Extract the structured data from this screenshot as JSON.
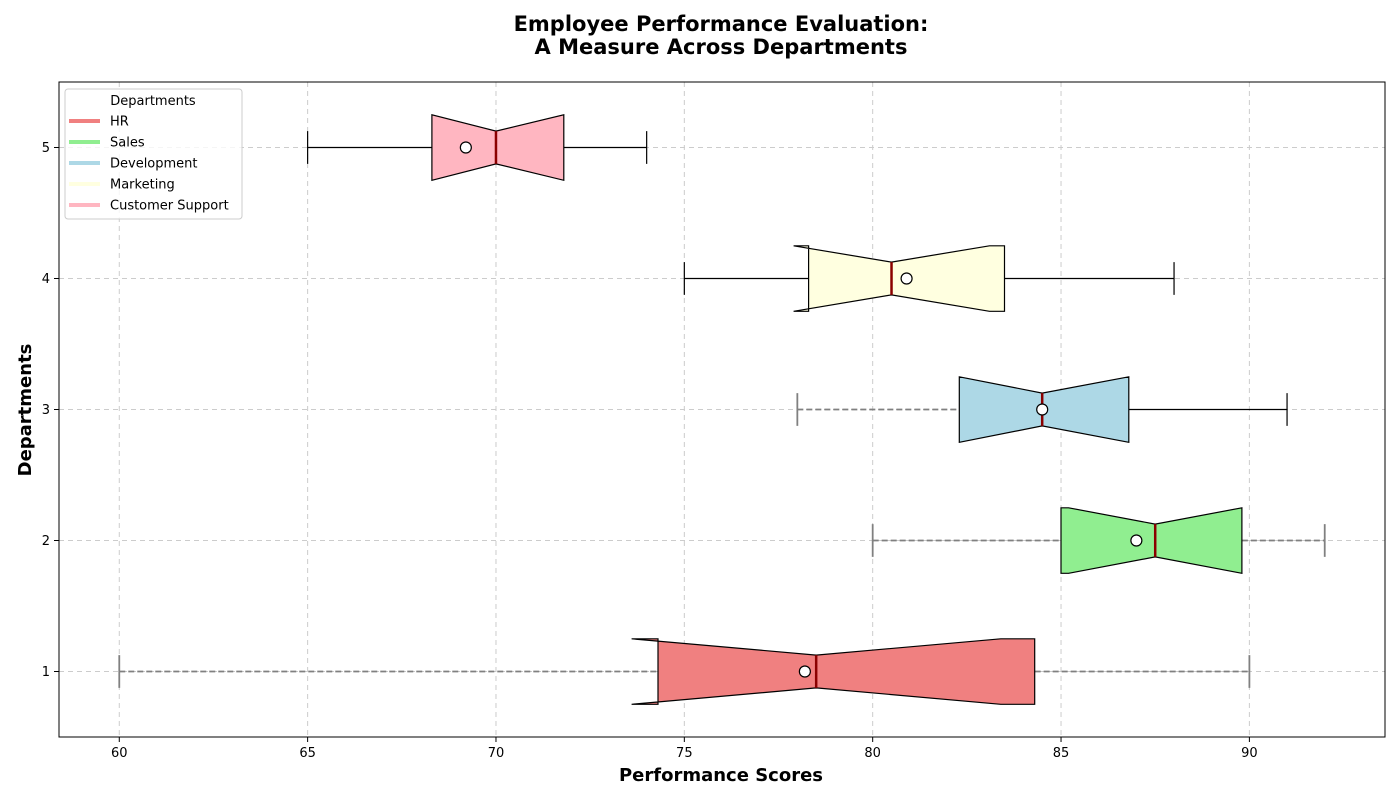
{
  "chart_data": {
    "type": "boxplot",
    "orientation": "horizontal",
    "title": [
      "Employee Performance Evaluation:",
      "A Measure Across Departments"
    ],
    "xlabel": "Performance Scores",
    "ylabel": "Departments",
    "xlim": [
      58.4,
      93.6
    ],
    "ylim": [
      0.5,
      5.5
    ],
    "xticks": [
      60,
      65,
      70,
      75,
      80,
      85,
      90
    ],
    "yticks": [
      1,
      2,
      3,
      4,
      5
    ],
    "grid": true,
    "notched": true,
    "show_means": true,
    "median_color": "#8b0000",
    "legend": {
      "title": "Departments",
      "position": "upper-left"
    },
    "series": [
      {
        "name": "HR",
        "position": 1,
        "color": "#f08080",
        "whisker_low": 60,
        "q1": 74.3,
        "median": 78.5,
        "q3": 84.3,
        "whisker_high": 90,
        "notch_low": 73.6,
        "notch_high": 83.4,
        "mean": 78.2,
        "whisker_style": "dashed"
      },
      {
        "name": "Sales",
        "position": 2,
        "color": "#90ee90",
        "whisker_low": 80,
        "q1": 85,
        "median": 87.5,
        "q3": 89.8,
        "whisker_high": 92,
        "notch_low": 85.2,
        "notch_high": 89.8,
        "mean": 87,
        "whisker_style": "dashed"
      },
      {
        "name": "Development",
        "position": 3,
        "color": "#add8e6",
        "whisker_low": 78,
        "q1": 82.3,
        "median": 84.5,
        "q3": 86.8,
        "whisker_high": 91,
        "notch_low": 82.3,
        "notch_high": 86.8,
        "mean": 84.5,
        "whisker_style": "mixed"
      },
      {
        "name": "Marketing",
        "position": 4,
        "color": "#ffffe0",
        "whisker_low": 75,
        "q1": 78.3,
        "median": 80.5,
        "q3": 83.5,
        "whisker_high": 88,
        "notch_low": 77.9,
        "notch_high": 83.1,
        "mean": 80.9,
        "whisker_style": "solid"
      },
      {
        "name": "Customer Support",
        "position": 5,
        "color": "#ffb6c1",
        "whisker_low": 65,
        "q1": 68.3,
        "median": 70,
        "q3": 71.8,
        "whisker_high": 74,
        "notch_low": 68.3,
        "notch_high": 71.8,
        "mean": 69.2,
        "whisker_style": "solid"
      }
    ]
  }
}
